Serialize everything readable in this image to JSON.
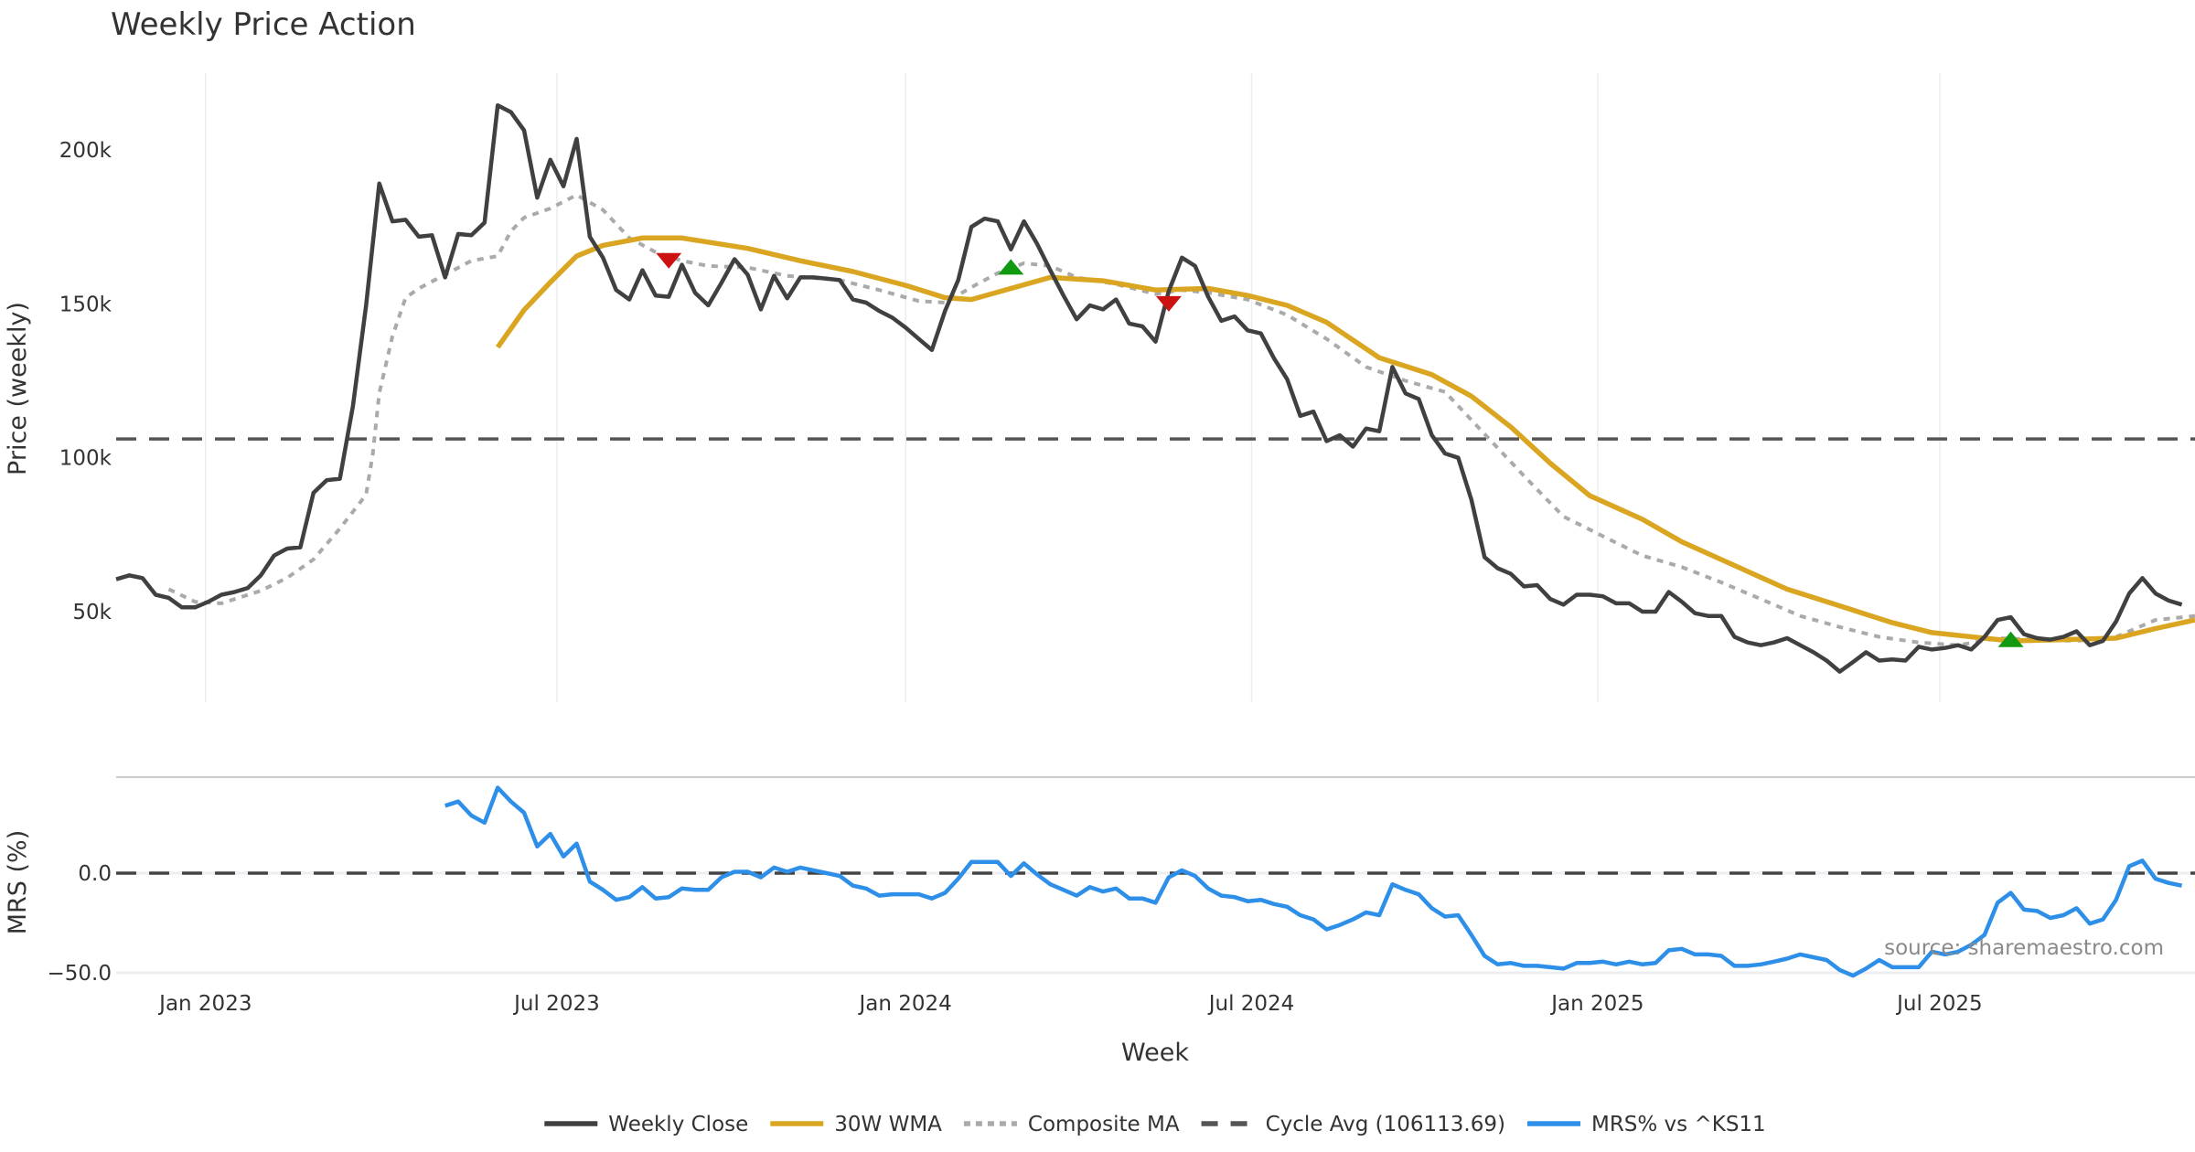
{
  "chart_data": {
    "type": "line",
    "title": "Weekly Price Action",
    "xlabel": "Week",
    "panels": [
      {
        "name": "price",
        "ylabel": "Price (weekly)",
        "ylim": [
          20000,
          226000
        ],
        "yticks": [
          {
            "value": 50000,
            "label": "50k"
          },
          {
            "value": 100000,
            "label": "100k"
          },
          {
            "value": 150000,
            "label": "150k"
          },
          {
            "value": 200000,
            "label": "200k"
          }
        ],
        "grid": "vertical"
      },
      {
        "name": "mrs",
        "ylabel": "MRS (%)",
        "ylim": [
          -52,
          48
        ],
        "yticks": [
          {
            "value": 0,
            "label": "0.0"
          },
          {
            "value": -50,
            "label": "−50.0"
          }
        ],
        "grid": "horizontal"
      }
    ],
    "x": {
      "unit": "week index (weekly bars, ~mid-Nov 2022 onward)",
      "range": [
        0,
        158
      ],
      "ticks": [
        {
          "index": 6.8,
          "label": "Jan 2023"
        },
        {
          "index": 33.5,
          "label": "Jul 2023"
        },
        {
          "index": 60.0,
          "label": "Jan 2024"
        },
        {
          "index": 86.3,
          "label": "Jul 2024"
        },
        {
          "index": 112.6,
          "label": "Jan 2025"
        },
        {
          "index": 138.6,
          "label": "Jul 2025"
        }
      ]
    },
    "series": [
      {
        "name": "Weekly Close",
        "panel": "price",
        "color": "#404040",
        "style": "solid",
        "start_index": 0,
        "values": [
          60500,
          61800,
          60900,
          55500,
          54500,
          51400,
          51400,
          53200,
          55500,
          56400,
          57700,
          61800,
          68200,
          70500,
          70900,
          88600,
          92700,
          93200,
          116800,
          149500,
          189100,
          176800,
          177300,
          171800,
          172300,
          158600,
          172700,
          172300,
          176400,
          214500,
          212300,
          206400,
          184500,
          196800,
          188200,
          203600,
          171800,
          165000,
          154500,
          151400,
          160900,
          152700,
          152300,
          162700,
          153600,
          149500,
          156800,
          164500,
          159500,
          148200,
          159100,
          151800,
          158600,
          158600,
          158200,
          157700,
          151400,
          150400,
          147700,
          145500,
          142300,
          138600,
          135000,
          147700,
          157700,
          175000,
          177700,
          176800,
          167700,
          176800,
          169500,
          160900,
          152700,
          145000,
          149500,
          148200,
          151400,
          143600,
          142700,
          137700,
          154100,
          165000,
          162300,
          152300,
          144500,
          145900,
          141400,
          140400,
          132300,
          125500,
          113600,
          115000,
          105400,
          107300,
          103600,
          109500,
          108600,
          129500,
          120900,
          119100,
          107300,
          101400,
          100000,
          86400,
          67700,
          64100,
          62300,
          58200,
          58600,
          54100,
          52300,
          55500,
          55500,
          55000,
          52700,
          52700,
          50000,
          50000,
          56400,
          53200,
          49500,
          48600,
          48600,
          41800,
          40000,
          39100,
          40000,
          41400,
          39100,
          36800,
          34100,
          30500,
          33600,
          36800,
          34100,
          34500,
          34100,
          38600,
          37700,
          38200,
          39100,
          37700,
          41800,
          47300,
          48200,
          42700,
          41400,
          40900,
          41800,
          43600,
          39100,
          40500,
          46800,
          55900,
          60900,
          55900,
          53600,
          52300
        ]
      },
      {
        "name": "30W WMA",
        "panel": "price",
        "color": "#DAA520",
        "style": "solid",
        "points": [
          [
            29,
            135900
          ],
          [
            31,
            148000
          ],
          [
            33,
            157000
          ],
          [
            35,
            165500
          ],
          [
            37,
            169000
          ],
          [
            40,
            171400
          ],
          [
            43,
            171400
          ],
          [
            48,
            168000
          ],
          [
            52,
            164000
          ],
          [
            56,
            160500
          ],
          [
            60,
            156000
          ],
          [
            63,
            152000
          ],
          [
            65,
            151400
          ],
          [
            68,
            155000
          ],
          [
            71,
            158600
          ],
          [
            75,
            157500
          ],
          [
            79,
            154500
          ],
          [
            83,
            155000
          ],
          [
            86,
            152700
          ],
          [
            89,
            149500
          ],
          [
            92,
            144000
          ],
          [
            96,
            132500
          ],
          [
            100,
            127000
          ],
          [
            103,
            120000
          ],
          [
            106,
            110000
          ],
          [
            109,
            98200
          ],
          [
            112,
            87700
          ],
          [
            116,
            80000
          ],
          [
            119,
            72700
          ],
          [
            123,
            65000
          ],
          [
            127,
            57300
          ],
          [
            132,
            50500
          ],
          [
            135,
            46400
          ],
          [
            138,
            43200
          ],
          [
            142,
            41400
          ],
          [
            144,
            40500
          ],
          [
            148,
            40900
          ],
          [
            152,
            41400
          ],
          [
            155,
            44500
          ],
          [
            158,
            47300
          ]
        ]
      },
      {
        "name": "Composite MA",
        "panel": "price",
        "color": "#AAAAAA",
        "style": "dotted",
        "points": [
          [
            4,
            57300
          ],
          [
            6,
            53200
          ],
          [
            8,
            52700
          ],
          [
            11,
            56800
          ],
          [
            13,
            61000
          ],
          [
            15,
            67000
          ],
          [
            17,
            77000
          ],
          [
            19,
            88000
          ],
          [
            19.5,
            101000
          ],
          [
            20,
            121000
          ],
          [
            21,
            139500
          ],
          [
            22,
            152000
          ],
          [
            23,
            155000
          ],
          [
            25,
            159500
          ],
          [
            27,
            164000
          ],
          [
            29,
            165500
          ],
          [
            30,
            173600
          ],
          [
            31,
            178000
          ],
          [
            33,
            181000
          ],
          [
            35,
            185400
          ],
          [
            37,
            180500
          ],
          [
            39,
            171400
          ],
          [
            41,
            166800
          ],
          [
            43,
            164000
          ],
          [
            45,
            162300
          ],
          [
            48,
            161800
          ],
          [
            51,
            159100
          ],
          [
            55,
            157700
          ],
          [
            58,
            154500
          ],
          [
            61,
            150900
          ],
          [
            63,
            150400
          ],
          [
            65,
            155400
          ],
          [
            67,
            160000
          ],
          [
            69,
            163200
          ],
          [
            71,
            162300
          ],
          [
            73,
            158600
          ],
          [
            76,
            156400
          ],
          [
            79,
            153200
          ],
          [
            81,
            154500
          ],
          [
            83,
            153600
          ],
          [
            86,
            151400
          ],
          [
            89,
            146400
          ],
          [
            92,
            138600
          ],
          [
            95,
            129500
          ],
          [
            98,
            125000
          ],
          [
            101,
            121400
          ],
          [
            104,
            107700
          ],
          [
            107,
            94100
          ],
          [
            110,
            80900
          ],
          [
            113,
            74500
          ],
          [
            116,
            68200
          ],
          [
            119,
            64500
          ],
          [
            122,
            59500
          ],
          [
            125,
            54100
          ],
          [
            128,
            48600
          ],
          [
            131,
            45000
          ],
          [
            134,
            41800
          ],
          [
            137,
            40000
          ],
          [
            140,
            39100
          ],
          [
            143,
            41400
          ],
          [
            146,
            40900
          ],
          [
            149,
            40500
          ],
          [
            152,
            41800
          ],
          [
            155,
            47300
          ],
          [
            158,
            48600
          ]
        ]
      },
      {
        "name": "Cycle Avg (106113.69)",
        "panel": "price",
        "color": "#555555",
        "style": "dashed",
        "value": 106113.69
      },
      {
        "name": "MRS% vs ^KS11",
        "panel": "mrs",
        "color": "#2E8FE8",
        "style": "solid",
        "start_index": 25,
        "values": [
          33.8,
          35.9,
          28.9,
          25.3,
          42.9,
          35.9,
          30.3,
          13.4,
          19.7,
          8.4,
          14.8,
          -4.2,
          -8.4,
          -13.4,
          -12,
          -7,
          -12.7,
          -12,
          -7.7,
          -8.4,
          -8.4,
          -2.1,
          0.7,
          0.7,
          -2.1,
          2.8,
          0.7,
          2.8,
          1.4,
          0,
          -1.4,
          -6.3,
          -7.7,
          -11.3,
          -10.6,
          -10.6,
          -10.6,
          -12.7,
          -9.9,
          -2.8,
          5.6,
          5.6,
          5.6,
          -1.4,
          4.9,
          -0.7,
          -5.6,
          -8.4,
          -11.3,
          -7,
          -9.2,
          -7.7,
          -12.7,
          -12.7,
          -14.8,
          -2.1,
          1.4,
          -1.4,
          -7.7,
          -11.3,
          -12,
          -14.1,
          -13.4,
          -15.5,
          -16.9,
          -21.1,
          -23.2,
          -28.2,
          -26,
          -23.2,
          -19.7,
          -21.1,
          -5.6,
          -8.4,
          -10.6,
          -17.6,
          -21.8,
          -21.1,
          -31,
          -41.5,
          -45.8,
          -45.1,
          -46.5,
          -46.5,
          -47.2,
          -47.9,
          -45.1,
          -45.1,
          -44.4,
          -45.8,
          -44.4,
          -45.8,
          -45.1,
          -38.7,
          -38,
          -40.8,
          -40.8,
          -41.5,
          -46.5,
          -46.5,
          -45.8,
          -44.4,
          -42.9,
          -40.8,
          -42.2,
          -43.6,
          -48.6,
          -51.4,
          -47.9,
          -43.6,
          -47.2,
          -47.2,
          -47.2,
          -39.4,
          -40.8,
          -39.4,
          -35.9,
          -31,
          -14.8,
          -9.9,
          -18.3,
          -19,
          -22.5,
          -21.1,
          -17.6,
          -25.3,
          -23.2,
          -13.4,
          3.5,
          6.3,
          -2.8,
          -4.9,
          -6.3
        ]
      },
      {
        "name": "MRS zero line",
        "panel": "mrs",
        "color": "#444444",
        "style": "dashed",
        "value": 0
      }
    ],
    "markers": [
      {
        "type": "sell",
        "shape": "triangle-down",
        "color": "#CC1111",
        "index": 42,
        "value": 164000
      },
      {
        "type": "buy",
        "shape": "triangle-up",
        "color": "#119911",
        "index": 68,
        "value": 162000
      },
      {
        "type": "sell",
        "shape": "triangle-down",
        "color": "#CC1111",
        "index": 80,
        "value": 150000
      },
      {
        "type": "buy",
        "shape": "triangle-up",
        "color": "#119911",
        "index": 144,
        "value": 41000
      }
    ],
    "legend": {
      "placement": "bottom-center",
      "entries": [
        {
          "label": "Weekly Close",
          "color": "#404040",
          "style": "solid"
        },
        {
          "label": "30W WMA",
          "color": "#DAA520",
          "style": "solid"
        },
        {
          "label": "Composite MA",
          "color": "#AAAAAA",
          "style": "dotted"
        },
        {
          "label": "Cycle Avg (106113.69)",
          "color": "#555555",
          "style": "dashed"
        },
        {
          "label": "MRS% vs ^KS11",
          "color": "#2E8FE8",
          "style": "solid"
        }
      ]
    },
    "annotation": "source: sharemaestro.com"
  }
}
